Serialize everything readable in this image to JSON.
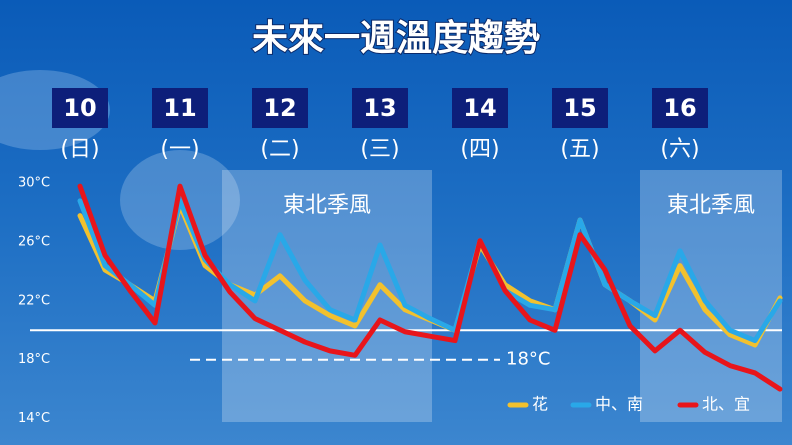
{
  "chart_data": {
    "type": "line",
    "title": "未來一週溫度趨勢",
    "xlim": [
      9.5,
      17.02
    ],
    "xticks": [
      10,
      11,
      12,
      13,
      14,
      15,
      16
    ],
    "weekdays": [
      "(日)",
      "(一)",
      "(二)",
      "(三)",
      "(四)",
      "(五)",
      "(六)"
    ],
    "ylim": [
      12.2,
      30.9
    ],
    "yticks": [
      {
        "value": 30,
        "label": "30°C"
      },
      {
        "value": 26,
        "label": "26°C"
      },
      {
        "value": 22,
        "label": "22°C"
      },
      {
        "value": 18,
        "label": "18°C"
      },
      {
        "value": 14,
        "label": "14°C"
      }
    ],
    "bands": [
      {
        "range": [
          11.42,
          13.52
        ],
        "label": "東北季風"
      },
      {
        "range": [
          15.6,
          17.02
        ],
        "label": "東北季風"
      }
    ],
    "reference_lines": [
      {
        "value": 20,
        "color": "#ffffff",
        "style": "solid",
        "range": [
          9.5,
          17.02
        ]
      },
      {
        "value": 18,
        "color": "#ffffff",
        "style": "dashed",
        "range": [
          11.1,
          14.2
        ],
        "label": "18°C"
      }
    ],
    "x": [
      10,
      10.25,
      10.5,
      10.75,
      11,
      11.25,
      11.5,
      11.75,
      12,
      12.25,
      12.5,
      12.75,
      13,
      13.25,
      13.5,
      13.75,
      14,
      14.25,
      14.5,
      14.75,
      15,
      15.25,
      15.5,
      15.75,
      16,
      16.25,
      16.5,
      16.75,
      17
    ],
    "series": [
      {
        "name": "花",
        "color": "#f2c12e",
        "values": [
          27.8,
          24.1,
          23.1,
          22.0,
          28.5,
          24.4,
          23.1,
          22.4,
          23.7,
          22.0,
          21.0,
          20.3,
          23.1,
          21.4,
          20.7,
          20.0,
          25.8,
          23.1,
          22.0,
          21.4,
          27.5,
          23.1,
          22.0,
          20.7,
          24.4,
          21.4,
          19.7,
          19.0,
          22.2
        ]
      },
      {
        "name": "中、南",
        "color": "#29a8e8",
        "values": [
          28.8,
          24.4,
          23.1,
          21.7,
          28.8,
          24.8,
          23.1,
          22.0,
          26.5,
          23.4,
          21.4,
          20.7,
          25.8,
          21.7,
          20.8,
          20.0,
          26.1,
          22.7,
          21.7,
          21.4,
          27.5,
          23.1,
          22.0,
          21.0,
          25.4,
          22.0,
          20.0,
          19.3,
          22.0
        ]
      },
      {
        "name": "北、宜",
        "color": "#e8151b",
        "values": [
          29.8,
          25.1,
          22.7,
          20.5,
          29.8,
          25.1,
          22.6,
          20.8,
          20.0,
          19.2,
          18.6,
          18.3,
          20.7,
          19.9,
          19.6,
          19.3,
          26.1,
          22.7,
          20.7,
          20.0,
          26.5,
          24.1,
          20.3,
          18.6,
          20.0,
          18.5,
          17.6,
          17.1,
          16.0
        ]
      }
    ]
  }
}
